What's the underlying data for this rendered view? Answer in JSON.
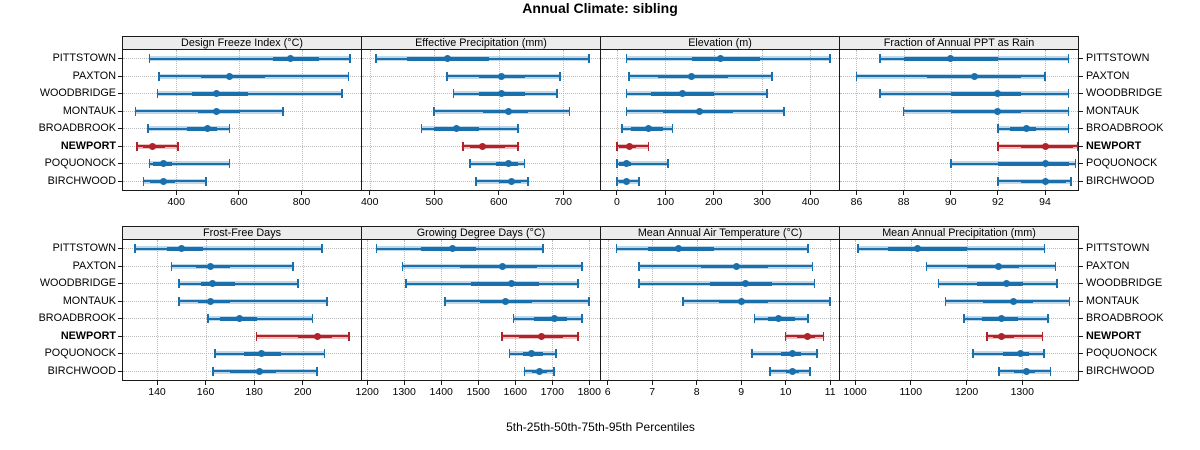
{
  "title": "Annual Climate: sibling",
  "xlabel": "5th-25th-50th-75th-95th Percentiles",
  "colors": {
    "series": "#1a70ad",
    "highlight": "#b12328",
    "strip_bg": "#ececec",
    "grid": "#bcbcbc",
    "border": "#1a1a1a",
    "text": "#000000"
  },
  "chart_data": {
    "type": "dotplot",
    "subtype": "percentile-segments",
    "percentile_labels": [
      "5th",
      "25th",
      "50th",
      "75th",
      "95th"
    ],
    "categories": [
      "PITTSTOWN",
      "PAXTON",
      "WOODBRIDGE",
      "MONTAUK",
      "BROADBROOK",
      "NEWPORT",
      "POQUONOCK",
      "BIRCHWOOD"
    ],
    "highlight_category": "NEWPORT",
    "layout": {
      "rows": 2,
      "cols": 4
    },
    "panels": [
      {
        "title": "Design Freeze Index (°C)",
        "ticks": [
          400,
          600,
          800
        ],
        "xlim": [
          230,
          990
        ],
        "series": [
          [
            315,
            710,
            765,
            855,
            955
          ],
          [
            345,
            480,
            570,
            685,
            950
          ],
          [
            340,
            450,
            530,
            630,
            930
          ],
          [
            270,
            470,
            530,
            605,
            740
          ],
          [
            310,
            435,
            500,
            530,
            570
          ],
          [
            275,
            295,
            325,
            365,
            405
          ],
          [
            315,
            325,
            360,
            385,
            570
          ],
          [
            295,
            315,
            360,
            395,
            495
          ]
        ]
      },
      {
        "title": "Effective Precipitation (mm)",
        "ticks": [
          400,
          500,
          600,
          700
        ],
        "xlim": [
          388,
          757
        ],
        "series": [
          [
            410,
            458,
            520,
            585,
            740
          ],
          [
            520,
            570,
            605,
            640,
            695
          ],
          [
            530,
            570,
            605,
            640,
            690
          ],
          [
            500,
            575,
            615,
            645,
            710
          ],
          [
            480,
            500,
            535,
            570,
            630
          ],
          [
            545,
            555,
            575,
            610,
            630
          ],
          [
            555,
            595,
            615,
            630,
            640
          ],
          [
            565,
            600,
            620,
            635,
            645
          ]
        ]
      },
      {
        "title": "Elevation (m)",
        "ticks": [
          0,
          100,
          200,
          300,
          400
        ],
        "xlim": [
          -33,
          459
        ],
        "series": [
          [
            20,
            155,
            215,
            295,
            440
          ],
          [
            25,
            85,
            155,
            230,
            320
          ],
          [
            20,
            70,
            135,
            200,
            310
          ],
          [
            20,
            95,
            170,
            240,
            345
          ],
          [
            10,
            30,
            65,
            95,
            115
          ],
          [
            0,
            5,
            25,
            40,
            65
          ],
          [
            0,
            5,
            20,
            30,
            105
          ],
          [
            0,
            5,
            20,
            25,
            45
          ]
        ]
      },
      {
        "title": "Fraction of Annual PPT as Rain",
        "ticks": [
          86,
          88,
          90,
          92,
          94
        ],
        "xlim": [
          85.3,
          95.4
        ],
        "series": [
          [
            87,
            88,
            90,
            92,
            95
          ],
          [
            86,
            89,
            91,
            93,
            94
          ],
          [
            87,
            90,
            92,
            93,
            95
          ],
          [
            88,
            90,
            92,
            93,
            95
          ],
          [
            92,
            92.5,
            93.2,
            93.6,
            95
          ],
          [
            92,
            93,
            94,
            95.2,
            95.4
          ],
          [
            90,
            92,
            94,
            95,
            95.3
          ],
          [
            92,
            93,
            94,
            94.9,
            95.1
          ]
        ]
      },
      {
        "title": "Frost-Free Days",
        "ticks": [
          140,
          160,
          180,
          200
        ],
        "xlim": [
          126,
          224
        ],
        "series": [
          [
            131,
            144,
            150,
            159,
            208
          ],
          [
            146,
            156,
            162,
            170,
            196
          ],
          [
            149,
            158,
            163,
            172,
            198
          ],
          [
            149,
            157,
            162,
            170,
            210
          ],
          [
            161,
            166,
            174,
            181,
            204
          ],
          [
            181,
            198,
            206,
            212,
            219
          ],
          [
            164,
            176,
            183,
            191,
            209
          ],
          [
            163,
            170,
            182,
            189,
            206
          ]
        ]
      },
      {
        "title": "Growing Degree Days (°C)",
        "ticks": [
          1200,
          1300,
          1400,
          1500,
          1600,
          1700,
          1800
        ],
        "xlim": [
          1186,
          1829
        ],
        "series": [
          [
            1225,
            1345,
            1430,
            1495,
            1675
          ],
          [
            1295,
            1450,
            1565,
            1660,
            1780
          ],
          [
            1305,
            1480,
            1590,
            1665,
            1770
          ],
          [
            1410,
            1505,
            1575,
            1645,
            1800
          ],
          [
            1595,
            1650,
            1705,
            1740,
            1780
          ],
          [
            1565,
            1610,
            1670,
            1730,
            1770
          ],
          [
            1585,
            1620,
            1645,
            1675,
            1710
          ],
          [
            1625,
            1645,
            1665,
            1685,
            1705
          ]
        ]
      },
      {
        "title": "Mean Annual Air Temperature (°C)",
        "ticks": [
          6,
          7,
          8,
          9,
          10,
          11
        ],
        "xlim": [
          5.85,
          11.2
        ],
        "series": [
          [
            6.2,
            6.9,
            7.6,
            8.4,
            10.5
          ],
          [
            6.7,
            8.1,
            8.9,
            9.6,
            10.6
          ],
          [
            6.7,
            8.3,
            9.1,
            9.7,
            10.65
          ],
          [
            7.7,
            8.5,
            9.0,
            9.6,
            11.0
          ],
          [
            9.3,
            9.6,
            9.85,
            10.2,
            10.5
          ],
          [
            10.0,
            10.25,
            10.5,
            10.65,
            10.85
          ],
          [
            9.25,
            9.9,
            10.15,
            10.35,
            10.7
          ],
          [
            9.65,
            10.0,
            10.15,
            10.3,
            10.55
          ]
        ]
      },
      {
        "title": "Mean Annual Precipitation (mm)",
        "ticks": [
          1000,
          1100,
          1200,
          1300
        ],
        "xlim": [
          973,
          1400
        ],
        "series": [
          [
            1005,
            1060,
            1112,
            1200,
            1340
          ],
          [
            1128,
            1200,
            1258,
            1295,
            1360
          ],
          [
            1150,
            1218,
            1272,
            1302,
            1362
          ],
          [
            1162,
            1230,
            1285,
            1320,
            1385
          ],
          [
            1196,
            1228,
            1262,
            1292,
            1346
          ],
          [
            1237,
            1248,
            1262,
            1285,
            1336
          ],
          [
            1212,
            1265,
            1297,
            1312,
            1339
          ],
          [
            1258,
            1285,
            1307,
            1322,
            1351
          ]
        ]
      }
    ]
  }
}
